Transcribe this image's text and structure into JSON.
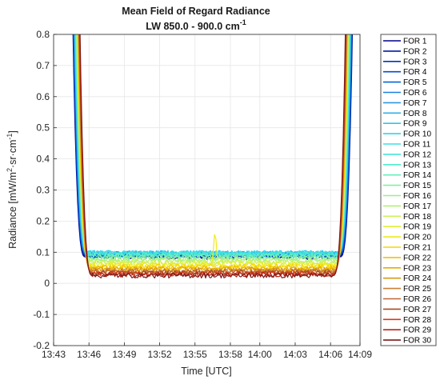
{
  "chart_data": {
    "type": "line",
    "title": "Mean Field of Regard Radiance",
    "subtitle_main": "LW 850.0 - 900.0 cm",
    "subtitle_sup": "-1",
    "xlabel": "Time [UTC]",
    "ylabel_main": "Radiance [mW/m",
    "ylabel_sup1": "2",
    "ylabel_mid": "·sr·cm",
    "ylabel_sup2": "-1",
    "ylabel_end": "]",
    "ylim": [
      -0.2,
      0.8
    ],
    "xlim_minutes": [
      823,
      849
    ],
    "y_ticks": [
      "-0.2",
      "-0.1",
      "0",
      "0.1",
      "0.2",
      "0.3",
      "0.4",
      "0.5",
      "0.6",
      "0.7",
      "0.8"
    ],
    "x_ticks": [
      "13:43",
      "13:46",
      "13:49",
      "13:52",
      "13:55",
      "13:58",
      "14:00",
      "14:03",
      "14:06",
      "14:09"
    ],
    "grid": true,
    "legend_position": "right, outside plot",
    "plateau_start_minutes": 825.8,
    "plateau_end_minutes": 847.2,
    "spike": {
      "series": "FOR 20",
      "time_minutes": 836.7,
      "peak_value": 0.18
    },
    "series": [
      {
        "name": "FOR 1",
        "color": "#00008b",
        "level": 0.085
      },
      {
        "name": "FOR 2",
        "color": "#001aa6",
        "level": 0.088
      },
      {
        "name": "FOR 3",
        "color": "#0033bf",
        "level": 0.09
      },
      {
        "name": "FOR 4",
        "color": "#004dd1",
        "level": 0.092
      },
      {
        "name": "FOR 5",
        "color": "#0066d9",
        "level": 0.093
      },
      {
        "name": "FOR 6",
        "color": "#1f80dd",
        "level": 0.095
      },
      {
        "name": "FOR 7",
        "color": "#2e99e0",
        "level": 0.096
      },
      {
        "name": "FOR 8",
        "color": "#33b0e6",
        "level": 0.097
      },
      {
        "name": "FOR 9",
        "color": "#33c4ea",
        "level": 0.098
      },
      {
        "name": "FOR 10",
        "color": "#33d4ea",
        "level": 0.098
      },
      {
        "name": "FOR 11",
        "color": "#3ddfe6",
        "level": 0.097
      },
      {
        "name": "FOR 12",
        "color": "#47e6d9",
        "level": 0.095
      },
      {
        "name": "FOR 13",
        "color": "#52eccc",
        "level": 0.092
      },
      {
        "name": "FOR 14",
        "color": "#66efbf",
        "level": 0.088
      },
      {
        "name": "FOR 15",
        "color": "#80f0a6",
        "level": 0.083
      },
      {
        "name": "FOR 16",
        "color": "#99f08c",
        "level": 0.078
      },
      {
        "name": "FOR 17",
        "color": "#b3f073",
        "level": 0.073
      },
      {
        "name": "FOR 18",
        "color": "#ccf059",
        "level": 0.068
      },
      {
        "name": "FOR 19",
        "color": "#e0ef3a",
        "level": 0.063
      },
      {
        "name": "FOR 20",
        "color": "#f0ea1a",
        "level": 0.058
      },
      {
        "name": "FOR 21",
        "color": "#f5d600",
        "level": 0.054
      },
      {
        "name": "FOR 22",
        "color": "#f2c200",
        "level": 0.05
      },
      {
        "name": "FOR 23",
        "color": "#e6ad00",
        "level": 0.046
      },
      {
        "name": "FOR 24",
        "color": "#d99a1a",
        "level": 0.043
      },
      {
        "name": "FOR 25",
        "color": "#cc8033",
        "level": 0.04
      },
      {
        "name": "FOR 26",
        "color": "#bf6633",
        "level": 0.037
      },
      {
        "name": "FOR 27",
        "color": "#a64d26",
        "level": 0.034
      },
      {
        "name": "FOR 28",
        "color": "#d93a1a",
        "level": 0.031
      },
      {
        "name": "FOR 29",
        "color": "#b32619",
        "level": 0.028
      },
      {
        "name": "FOR 30",
        "color": "#801a1a",
        "level": 0.025
      }
    ]
  }
}
